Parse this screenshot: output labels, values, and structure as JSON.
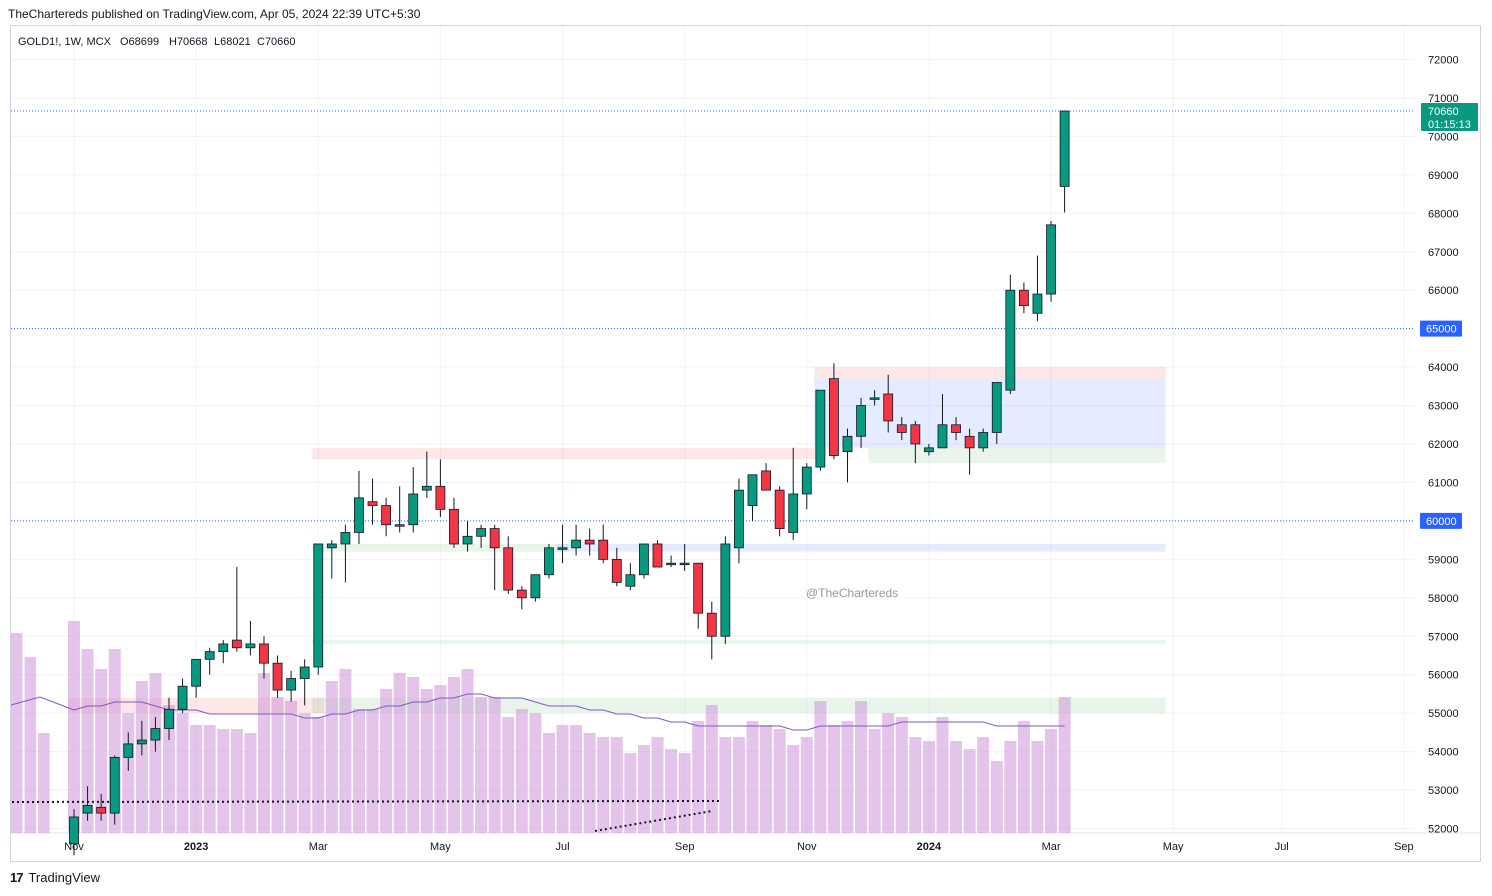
{
  "header": {
    "text": "TheChartereds published on TradingView.com, Apr 05, 2024 22:39 UTC+5:30"
  },
  "legend": {
    "symbol": "GOLD1!, 1W, MCX",
    "open": "O68699",
    "high": "H70668",
    "low": "L68021",
    "close": "C70660"
  },
  "watermark": "@TheChartereds",
  "footer": {
    "logo": "17",
    "brand": "TradingView"
  },
  "price_tags": {
    "last": {
      "price": "70660",
      "countdown": "01:15:13",
      "color": "#089981"
    },
    "level_65000": {
      "label": "65000",
      "color": "#2962ff"
    },
    "level_60000": {
      "label": "60000",
      "color": "#2962ff"
    }
  },
  "colors": {
    "up": "#089981",
    "down": "#f23645",
    "volume": "#ce93d8",
    "ma": "#7e57c2",
    "grid": "#f0f3fa",
    "hline": "#2962ff"
  },
  "chart_data": {
    "type": "candlestick",
    "symbol": "GOLD1!",
    "interval": "1W",
    "exchange": "MCX",
    "y_axis": {
      "range": [
        51800,
        72500
      ],
      "ticks": [
        52000,
        53000,
        54000,
        55000,
        56000,
        57000,
        58000,
        59000,
        60000,
        61000,
        62000,
        63000,
        64000,
        65000,
        66000,
        67000,
        68000,
        69000,
        70000,
        71000,
        72000
      ],
      "tick_labels": [
        "52000",
        "53000",
        "54000",
        "55000",
        "56000",
        "57000",
        "58000",
        "59000",
        "60000",
        "61000",
        "62000",
        "63000",
        "64000",
        "65000",
        "66000",
        "67000",
        "68000",
        "69000",
        "70000",
        "71000",
        "72000"
      ]
    },
    "x_axis": {
      "labels": [
        {
          "text": "Nov",
          "week": 0,
          "bold": false
        },
        {
          "text": "2023",
          "week": 9,
          "bold": true
        },
        {
          "text": "Mar",
          "week": 18,
          "bold": false
        },
        {
          "text": "May",
          "week": 27,
          "bold": false
        },
        {
          "text": "Jul",
          "week": 36,
          "bold": false
        },
        {
          "text": "Sep",
          "week": 45,
          "bold": false
        },
        {
          "text": "Nov",
          "week": 54,
          "bold": false
        },
        {
          "text": "2024",
          "week": 63,
          "bold": true
        },
        {
          "text": "Mar",
          "week": 72,
          "bold": false
        },
        {
          "text": "May",
          "week": 81,
          "bold": false
        },
        {
          "text": "Jul",
          "week": 89,
          "bold": false
        },
        {
          "text": "Sep",
          "week": 98,
          "bold": false
        }
      ]
    },
    "candles": [
      {
        "o": 51600,
        "h": 52500,
        "l": 51300,
        "c": 52300
      },
      {
        "o": 52400,
        "h": 53100,
        "l": 52200,
        "c": 52600
      },
      {
        "o": 52550,
        "h": 52900,
        "l": 52200,
        "c": 52400
      },
      {
        "o": 52400,
        "h": 53900,
        "l": 52100,
        "c": 53850
      },
      {
        "o": 53850,
        "h": 54500,
        "l": 53500,
        "c": 54200
      },
      {
        "o": 54200,
        "h": 54800,
        "l": 53900,
        "c": 54300
      },
      {
        "o": 54300,
        "h": 54900,
        "l": 54000,
        "c": 54600
      },
      {
        "o": 54600,
        "h": 55400,
        "l": 54300,
        "c": 55100
      },
      {
        "o": 55100,
        "h": 55900,
        "l": 55000,
        "c": 55700
      },
      {
        "o": 55700,
        "h": 56400,
        "l": 55400,
        "c": 56400
      },
      {
        "o": 56400,
        "h": 56700,
        "l": 56000,
        "c": 56600
      },
      {
        "o": 56600,
        "h": 56900,
        "l": 56300,
        "c": 56800
      },
      {
        "o": 56900,
        "h": 58800,
        "l": 56600,
        "c": 56700
      },
      {
        "o": 56700,
        "h": 57400,
        "l": 56500,
        "c": 56800
      },
      {
        "o": 56800,
        "h": 57000,
        "l": 55900,
        "c": 56300
      },
      {
        "o": 56300,
        "h": 56500,
        "l": 55400,
        "c": 55600
      },
      {
        "o": 55600,
        "h": 56100,
        "l": 55300,
        "c": 55900
      },
      {
        "o": 55900,
        "h": 56400,
        "l": 55200,
        "c": 56200
      },
      {
        "o": 56200,
        "h": 59400,
        "l": 56000,
        "c": 59400
      },
      {
        "o": 59300,
        "h": 59500,
        "l": 58500,
        "c": 59400
      },
      {
        "o": 59400,
        "h": 59900,
        "l": 58400,
        "c": 59700
      },
      {
        "o": 59700,
        "h": 61300,
        "l": 59400,
        "c": 60600
      },
      {
        "o": 60500,
        "h": 61100,
        "l": 59900,
        "c": 60400
      },
      {
        "o": 60400,
        "h": 60600,
        "l": 59600,
        "c": 59900
      },
      {
        "o": 59900,
        "h": 60900,
        "l": 59700,
        "c": 59900
      },
      {
        "o": 59900,
        "h": 61400,
        "l": 59700,
        "c": 60700
      },
      {
        "o": 60800,
        "h": 61800,
        "l": 60600,
        "c": 60900
      },
      {
        "o": 60900,
        "h": 61600,
        "l": 60100,
        "c": 60300
      },
      {
        "o": 60300,
        "h": 60600,
        "l": 59300,
        "c": 59400
      },
      {
        "o": 59400,
        "h": 60000,
        "l": 59200,
        "c": 59600
      },
      {
        "o": 59600,
        "h": 59900,
        "l": 59300,
        "c": 59800
      },
      {
        "o": 59800,
        "h": 59900,
        "l": 58200,
        "c": 59300
      },
      {
        "o": 59300,
        "h": 59600,
        "l": 58100,
        "c": 58200
      },
      {
        "o": 58200,
        "h": 58300,
        "l": 57700,
        "c": 58000
      },
      {
        "o": 58000,
        "h": 58600,
        "l": 57900,
        "c": 58600
      },
      {
        "o": 58600,
        "h": 59400,
        "l": 58500,
        "c": 59300
      },
      {
        "o": 59300,
        "h": 59900,
        "l": 58900,
        "c": 59300
      },
      {
        "o": 59300,
        "h": 59900,
        "l": 59100,
        "c": 59500
      },
      {
        "o": 59500,
        "h": 59800,
        "l": 59100,
        "c": 59400
      },
      {
        "o": 59500,
        "h": 59900,
        "l": 58900,
        "c": 59000
      },
      {
        "o": 59000,
        "h": 59300,
        "l": 58300,
        "c": 58400
      },
      {
        "o": 58300,
        "h": 58900,
        "l": 58200,
        "c": 58600
      },
      {
        "o": 58600,
        "h": 59400,
        "l": 58500,
        "c": 59400
      },
      {
        "o": 59400,
        "h": 59500,
        "l": 58800,
        "c": 58800
      },
      {
        "o": 58900,
        "h": 59100,
        "l": 58800,
        "c": 58900
      },
      {
        "o": 58900,
        "h": 59400,
        "l": 58700,
        "c": 58900
      },
      {
        "o": 58900,
        "h": 58900,
        "l": 57200,
        "c": 57600
      },
      {
        "o": 57600,
        "h": 57900,
        "l": 56400,
        "c": 57000
      },
      {
        "o": 57000,
        "h": 59600,
        "l": 56800,
        "c": 59400
      },
      {
        "o": 59300,
        "h": 61100,
        "l": 58900,
        "c": 60800
      },
      {
        "o": 60400,
        "h": 61200,
        "l": 60000,
        "c": 61200
      },
      {
        "o": 61300,
        "h": 61500,
        "l": 60800,
        "c": 60800
      },
      {
        "o": 60800,
        "h": 60900,
        "l": 59600,
        "c": 59800
      },
      {
        "o": 59700,
        "h": 61900,
        "l": 59500,
        "c": 60700
      },
      {
        "o": 60700,
        "h": 61500,
        "l": 60300,
        "c": 61400
      },
      {
        "o": 61400,
        "h": 63400,
        "l": 61300,
        "c": 63400
      },
      {
        "o": 63700,
        "h": 64100,
        "l": 61600,
        "c": 61700
      },
      {
        "o": 61800,
        "h": 62400,
        "l": 61000,
        "c": 62200
      },
      {
        "o": 62200,
        "h": 63200,
        "l": 61900,
        "c": 63000
      },
      {
        "o": 63200,
        "h": 63400,
        "l": 63000,
        "c": 63200
      },
      {
        "o": 63300,
        "h": 63800,
        "l": 62300,
        "c": 62600
      },
      {
        "o": 62500,
        "h": 62700,
        "l": 62100,
        "c": 62300
      },
      {
        "o": 62500,
        "h": 62600,
        "l": 61500,
        "c": 62000
      },
      {
        "o": 61800,
        "h": 62000,
        "l": 61700,
        "c": 61900
      },
      {
        "o": 61900,
        "h": 63300,
        "l": 61900,
        "c": 62500
      },
      {
        "o": 62500,
        "h": 62700,
        "l": 62100,
        "c": 62300
      },
      {
        "o": 62200,
        "h": 62400,
        "l": 61200,
        "c": 61900
      },
      {
        "o": 61900,
        "h": 62400,
        "l": 61800,
        "c": 62300
      },
      {
        "o": 62300,
        "h": 63600,
        "l": 62000,
        "c": 63600
      },
      {
        "o": 63400,
        "h": 66400,
        "l": 63300,
        "c": 66000
      },
      {
        "o": 66000,
        "h": 66200,
        "l": 65400,
        "c": 65600
      },
      {
        "o": 65400,
        "h": 66900,
        "l": 65200,
        "c": 65900
      },
      {
        "o": 65900,
        "h": 67800,
        "l": 65700,
        "c": 67700
      },
      {
        "o": 68699,
        "h": 70668,
        "l": 68021,
        "c": 70660
      }
    ],
    "volume_relative": [
      0.53,
      0.46,
      0.41,
      0.46,
      0.3,
      0.38,
      0.4,
      0.32,
      0.3,
      0.27,
      0.27,
      0.26,
      0.26,
      0.25,
      0.4,
      0.34,
      0.33,
      0.3,
      0.29,
      0.38,
      0.41,
      0.31,
      0.31,
      0.36,
      0.4,
      0.39,
      0.36,
      0.37,
      0.39,
      0.41,
      0.34,
      0.34,
      0.29,
      0.31,
      0.3,
      0.25,
      0.27,
      0.27,
      0.25,
      0.24,
      0.24,
      0.2,
      0.22,
      0.24,
      0.21,
      0.2,
      0.28,
      0.32,
      0.24,
      0.24,
      0.28,
      0.27,
      0.26,
      0.22,
      0.24,
      0.33,
      0.27,
      0.28,
      0.33,
      0.26,
      0.3,
      0.29,
      0.24,
      0.23,
      0.29,
      0.23,
      0.21,
      0.24,
      0.18,
      0.23,
      0.28,
      0.23,
      0.26,
      0.34
    ],
    "volume_ma_relative": [
      0.3,
      0.31,
      0.31,
      0.32,
      0.32,
      0.32,
      0.31,
      0.3,
      0.3,
      0.3,
      0.29,
      0.29,
      0.29,
      0.29,
      0.29,
      0.29,
      0.29,
      0.28,
      0.28,
      0.29,
      0.29,
      0.3,
      0.3,
      0.31,
      0.31,
      0.32,
      0.32,
      0.33,
      0.33,
      0.34,
      0.34,
      0.33,
      0.33,
      0.33,
      0.32,
      0.31,
      0.31,
      0.31,
      0.3,
      0.3,
      0.29,
      0.29,
      0.28,
      0.28,
      0.27,
      0.27,
      0.26,
      0.26,
      0.26,
      0.26,
      0.26,
      0.26,
      0.26,
      0.25,
      0.25,
      0.26,
      0.26,
      0.26,
      0.26,
      0.26,
      0.26,
      0.27,
      0.27,
      0.27,
      0.27,
      0.27,
      0.27,
      0.27,
      0.26,
      0.26,
      0.26,
      0.26,
      0.26,
      0.26
    ],
    "horizontal_lines": [
      70660,
      65000,
      60000
    ],
    "zones": [
      {
        "price_low": 61600,
        "price_high": 61900,
        "start_week": 18,
        "end_week": 55,
        "color": "#f23645"
      },
      {
        "price_low": 63700,
        "price_high": 64000,
        "start_week": 55,
        "end_week": 80,
        "color": "#f23645"
      },
      {
        "price_low": 61900,
        "price_high": 63700,
        "start_week": 55,
        "end_week": 80,
        "color": "#2962ff"
      },
      {
        "price_low": 61500,
        "price_high": 61900,
        "start_week": 59,
        "end_week": 80,
        "color": "#4caf50"
      },
      {
        "price_low": 59200,
        "price_high": 59400,
        "start_week": 18,
        "end_week": 36,
        "color": "#4caf50"
      },
      {
        "price_low": 59200,
        "price_high": 59400,
        "start_week": 36,
        "end_week": 80,
        "color": "#2962ff"
      },
      {
        "price_low": 56800,
        "price_high": 56900,
        "start_week": 18,
        "end_week": 80,
        "color": "#4caf50"
      },
      {
        "price_low": 55000,
        "price_high": 55400,
        "start_week": 18,
        "end_week": 80,
        "color": "#4caf50"
      },
      {
        "price_low": 55000,
        "price_high": 55400,
        "start_week": 0,
        "end_week": 18,
        "color": "#f23645"
      }
    ]
  }
}
